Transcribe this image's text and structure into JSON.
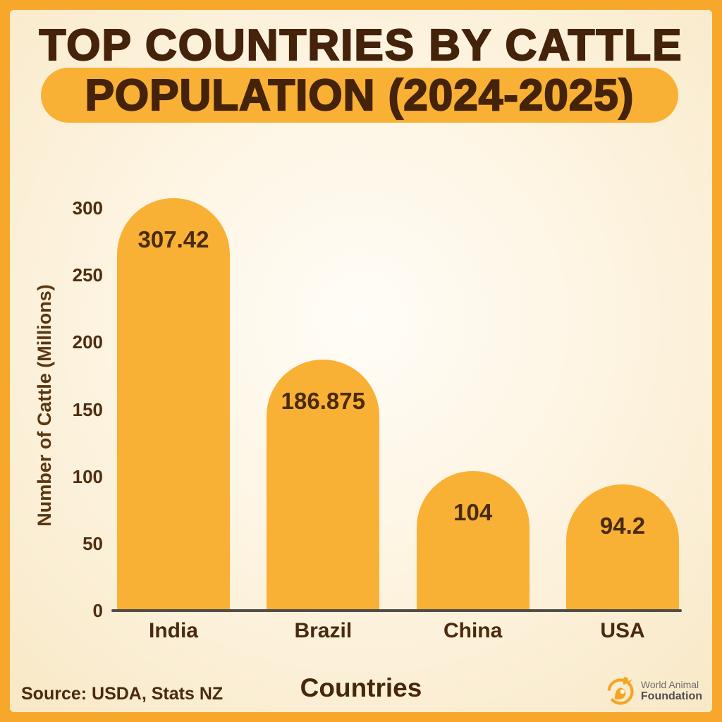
{
  "poster": {
    "title_line1": "TOP COUNTRIES BY CATTLE",
    "title_line2": "POPULATION (2024-2025)",
    "source": "Source: USDA, Stats NZ",
    "brand": {
      "line1": "World Animal",
      "line2": "Foundation"
    }
  },
  "chart_data": {
    "type": "bar",
    "title": "Top Countries by Cattle Population (2024-2025)",
    "categories": [
      "India",
      "Brazil",
      "China",
      "USA"
    ],
    "values": [
      307.42,
      186.875,
      104,
      94.2
    ],
    "value_labels": [
      "307.42",
      "186.875",
      "104",
      "94.2"
    ],
    "xlabel": "Countries",
    "ylabel": "Number of Cattle (Millions)",
    "yticks": [
      0,
      50,
      100,
      150,
      200,
      250,
      300
    ],
    "ylim": [
      0,
      331
    ],
    "grid": false,
    "legend": null,
    "bar_color": "#F9B135",
    "value_label_color": "#4A2B10"
  },
  "colors": {
    "frame": "#F7A82B",
    "band": "#F9B135",
    "title_text": "#45220A",
    "axis_text": "#4F2E10",
    "axis_line": "#524E48",
    "background_center": "#FFFDF7",
    "background_edge": "#F8E8C6"
  },
  "icons": {
    "brand_logo": "animal-circle-logo"
  }
}
